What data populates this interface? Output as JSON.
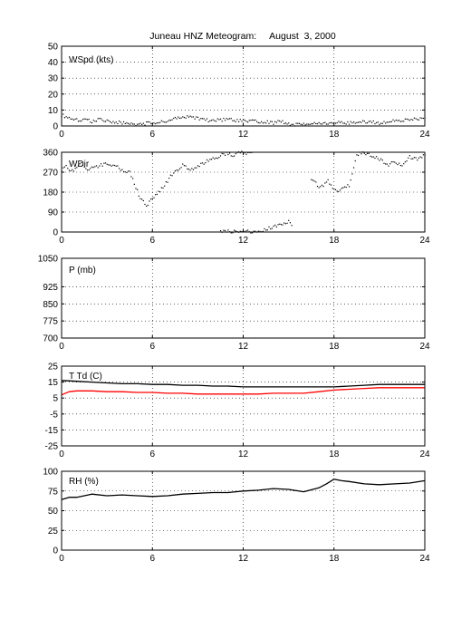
{
  "title": "Juneau HNZ Meteogram:     August  3, 2000",
  "colors": {
    "background": "#ffffff",
    "axes": "#000000",
    "grid": "#000000",
    "series_black": "#000000",
    "series_red": "#ff0000"
  },
  "chart_data": [
    {
      "type": "line",
      "label": "WSpd (kts)",
      "xlim": [
        0,
        24
      ],
      "ylim": [
        0,
        50
      ],
      "xticks": [
        0,
        6,
        12,
        18,
        24
      ],
      "yticks": [
        0,
        10,
        20,
        30,
        40,
        50
      ],
      "grid": "dotted",
      "series": [
        {
          "color": "#000000",
          "style": "dots",
          "x": [
            0,
            0.5,
            1,
            1.5,
            2,
            2.5,
            3,
            4,
            5,
            6,
            7,
            7.5,
            8,
            8.5,
            9,
            9.5,
            10,
            10.5,
            11,
            12,
            13,
            14,
            14.5,
            15,
            16,
            17,
            18,
            19,
            20,
            21,
            22,
            23,
            24
          ],
          "y": [
            7,
            5,
            4,
            4,
            3,
            4,
            3,
            2,
            1,
            2,
            3,
            5,
            5,
            6,
            5,
            4,
            3,
            4,
            4,
            3,
            3,
            2,
            3,
            1,
            1,
            2,
            2,
            2,
            3,
            2,
            3,
            4,
            5
          ]
        }
      ]
    },
    {
      "type": "scatter",
      "label": "WDir",
      "xlim": [
        0,
        24
      ],
      "ylim": [
        0,
        360
      ],
      "xticks": [
        0,
        6,
        12,
        18,
        24
      ],
      "yticks": [
        0,
        90,
        180,
        270,
        360
      ],
      "grid": "dotted",
      "series": [
        {
          "color": "#000000",
          "style": "dots",
          "x": [
            0,
            0.3,
            0.6,
            1,
            1.3,
            1.6,
            2,
            2.5,
            3,
            3.5,
            4,
            4.5,
            5.2,
            5.6,
            6.8,
            7,
            7.3,
            7.6,
            8,
            8.3,
            8.6,
            9,
            9.3,
            9.6,
            10,
            10.3,
            10.6,
            11,
            11.3,
            11.6,
            12,
            12.3,
            12.6,
            10.5,
            11,
            12,
            13,
            14.8,
            15,
            15.2,
            16.5,
            16.8,
            17,
            17.3,
            17.6,
            18,
            18.3,
            18.6,
            19,
            19.5,
            20,
            20.5,
            21,
            21.5,
            22,
            22.5,
            23,
            23.5,
            24
          ],
          "y": [
            280,
            300,
            270,
            290,
            310,
            280,
            290,
            300,
            310,
            300,
            280,
            270,
            150,
            120,
            210,
            230,
            260,
            280,
            300,
            290,
            280,
            300,
            310,
            320,
            330,
            340,
            350,
            355,
            340,
            360,
            360,
            355,
            360,
            5,
            3,
            2,
            4,
            40,
            50,
            30,
            240,
            220,
            200,
            210,
            230,
            190,
            180,
            200,
            210,
            350,
            360,
            340,
            330,
            300,
            320,
            300,
            340,
            330,
            350
          ]
        }
      ]
    },
    {
      "type": "line",
      "label": "P (mb)",
      "xlim": [
        0,
        24
      ],
      "ylim": [
        700,
        1050
      ],
      "xticks": [
        0,
        6,
        12,
        18,
        24
      ],
      "yticks": [
        700,
        775,
        850,
        925,
        1050
      ],
      "grid": "dotted",
      "series": []
    },
    {
      "type": "line",
      "label": "T Td (C)",
      "xlim": [
        0,
        24
      ],
      "ylim": [
        -25,
        25
      ],
      "xticks": [
        0,
        6,
        12,
        18,
        24
      ],
      "yticks": [
        -25,
        -15,
        -5,
        5,
        15,
        25
      ],
      "grid": "dotted",
      "series": [
        {
          "color": "#000000",
          "style": "line",
          "x": [
            0,
            1,
            2,
            3,
            4,
            5,
            6,
            7,
            8,
            9,
            10,
            11,
            12,
            13,
            14,
            15,
            16,
            17,
            18,
            19,
            20,
            21,
            22,
            23,
            24
          ],
          "y": [
            16,
            15.5,
            15,
            14.5,
            14,
            14,
            13.5,
            13.5,
            13,
            13,
            12.5,
            12.5,
            12,
            12,
            12,
            12,
            12,
            12,
            12,
            12.5,
            13,
            13.5,
            13.5,
            13.5,
            13.5
          ]
        },
        {
          "color": "#ff0000",
          "style": "line",
          "x": [
            0,
            0.5,
            1,
            2,
            3,
            4,
            5,
            6,
            7,
            8,
            9,
            10,
            11,
            12,
            13,
            14,
            15,
            16,
            17,
            18,
            19,
            20,
            21,
            22,
            23,
            24
          ],
          "y": [
            7,
            9,
            9.5,
            9.5,
            9,
            9,
            8.5,
            8.5,
            8,
            8,
            7.5,
            7.5,
            7.5,
            7.5,
            7.5,
            8,
            8,
            8,
            9,
            10,
            10.5,
            11,
            11.5,
            11.5,
            11.5,
            11.5
          ]
        }
      ]
    },
    {
      "type": "line",
      "label": "RH (%)",
      "xlim": [
        0,
        24
      ],
      "ylim": [
        0,
        100
      ],
      "xticks": [
        0,
        6,
        12,
        18,
        24
      ],
      "yticks": [
        0,
        25,
        50,
        75,
        100
      ],
      "grid": "dotted",
      "series": [
        {
          "color": "#000000",
          "style": "line",
          "x": [
            0,
            0.5,
            1,
            1.5,
            2,
            3,
            4,
            5,
            6,
            7,
            8,
            9,
            10,
            11,
            12,
            13,
            14,
            15,
            16,
            17,
            17.5,
            18,
            18.5,
            19,
            20,
            21,
            22,
            23,
            24
          ],
          "y": [
            64,
            67,
            67,
            69,
            71,
            69,
            70,
            69,
            68,
            69,
            71,
            72,
            73,
            73,
            75,
            76,
            78,
            77,
            74,
            79,
            84,
            90,
            88,
            87,
            84,
            83,
            84,
            85,
            88
          ]
        }
      ]
    }
  ]
}
